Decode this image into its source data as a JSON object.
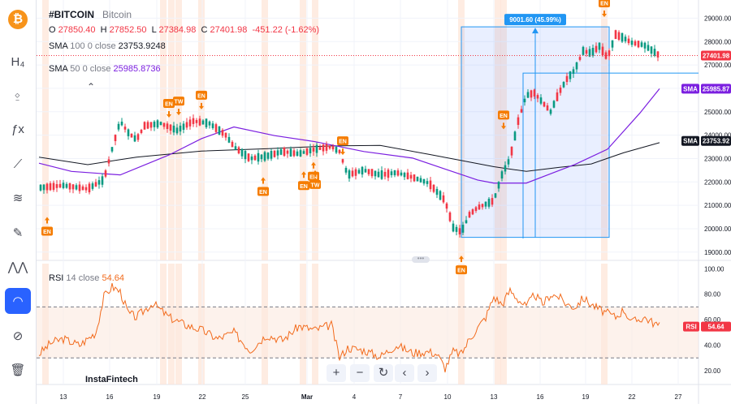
{
  "sidebar": {
    "logo_glyph": "₿",
    "tools": [
      {
        "name": "timeframe-icon",
        "glyph": "H₄",
        "top": 60
      },
      {
        "name": "candles-icon",
        "glyph": "⍚",
        "top": 100
      },
      {
        "name": "indicators-icon",
        "glyph": "ƒx",
        "top": 143
      },
      {
        "name": "trendline-icon",
        "glyph": "⟋",
        "top": 186
      },
      {
        "name": "fib-icon",
        "glyph": "≋",
        "top": 228
      },
      {
        "name": "brush-icon",
        "glyph": "✎",
        "top": 271
      },
      {
        "name": "patterns-icon",
        "glyph": "⋀⋀",
        "top": 313
      },
      {
        "name": "magnet-icon",
        "glyph": "◠",
        "top": 355,
        "active": true
      },
      {
        "name": "hide-drawings-icon",
        "glyph": "⊘",
        "top": 398
      },
      {
        "name": "trash-icon",
        "glyph": "🗑",
        "top": 440
      }
    ]
  },
  "header": {
    "symbol": "#BITCOIN",
    "name": "Bitcoin",
    "o_label": "O",
    "o_value": "27850.40",
    "h_label": "H",
    "h_value": "27852.50",
    "l_label": "L",
    "l_value": "27384.98",
    "c_label": "C",
    "c_value": "27401.98",
    "change": "-451.22 (-1.62%)"
  },
  "indicators": {
    "sma100": {
      "label": "SMA",
      "params": "100  0  close",
      "value": "23753.9248",
      "axis_label": "SMA",
      "axis_value": "23753.92",
      "color": "#131722"
    },
    "sma50": {
      "label": "SMA",
      "params": "50  0  close",
      "value": "25985.8736",
      "axis_label": "SMA",
      "axis_value": "25985.87",
      "color": "#7b1fe0"
    },
    "rsi": {
      "label": "RSI",
      "params": "14  close",
      "value": "54.64",
      "axis_label": "RSI",
      "axis_value": "54.64",
      "color": "#f26b1d"
    }
  },
  "price_label": "27401.98",
  "measure_label": "9001.60 (45.99%)",
  "marker_labels": {
    "en": "EN",
    "tw": "TW"
  },
  "watermark": "InstaFintech",
  "chart_data": {
    "type": "candlestick",
    "price_axis": {
      "ticks": [
        "29000.00",
        "28000.00",
        "27000.00",
        "26000.00",
        "25000.00",
        "24000.00",
        "23000.00",
        "22000.00",
        "21000.00",
        "20000.00",
        "19000.00"
      ],
      "ylim": [
        18750,
        29500
      ]
    },
    "rsi_axis": {
      "ticks": [
        "100.00",
        "80.00",
        "60.00",
        "40.00",
        "20.00"
      ],
      "ylim": [
        13,
        104
      ],
      "bands": [
        30,
        70
      ]
    },
    "x_axis": {
      "ticks": [
        "13",
        "16",
        "19",
        "22",
        "25",
        "Mar",
        "4",
        "7",
        "10",
        "13",
        "16",
        "19",
        "22",
        "27"
      ]
    },
    "sma100_points": [
      [
        0,
        23060
      ],
      [
        60,
        22740
      ],
      [
        120,
        23060
      ],
      [
        200,
        23320
      ],
      [
        280,
        23420
      ],
      [
        360,
        23540
      ],
      [
        420,
        23560
      ],
      [
        480,
        23180
      ],
      [
        560,
        22650
      ],
      [
        600,
        22450
      ],
      [
        640,
        22620
      ],
      [
        680,
        22770
      ],
      [
        720,
        23250
      ],
      [
        764,
        23680
      ]
    ],
    "sma50_points": [
      [
        0,
        22800
      ],
      [
        40,
        22450
      ],
      [
        100,
        22300
      ],
      [
        160,
        23150
      ],
      [
        200,
        23850
      ],
      [
        240,
        24350
      ],
      [
        290,
        23980
      ],
      [
        340,
        23720
      ],
      [
        400,
        23300
      ],
      [
        460,
        23020
      ],
      [
        500,
        22550
      ],
      [
        540,
        22080
      ],
      [
        560,
        21950
      ],
      [
        600,
        21950
      ],
      [
        630,
        22350
      ],
      [
        660,
        22750
      ],
      [
        700,
        23400
      ],
      [
        740,
        24950
      ],
      [
        764,
        25985
      ]
    ],
    "price_points": [
      [
        0,
        21750
      ],
      [
        30,
        21850
      ],
      [
        60,
        21700
      ],
      [
        80,
        22100
      ],
      [
        90,
        23400
      ],
      [
        100,
        24600
      ],
      [
        110,
        24100
      ],
      [
        120,
        23800
      ],
      [
        130,
        24400
      ],
      [
        150,
        24500
      ],
      [
        170,
        24200
      ],
      [
        190,
        24600
      ],
      [
        210,
        24500
      ],
      [
        230,
        24000
      ],
      [
        240,
        23500
      ],
      [
        260,
        23000
      ],
      [
        280,
        23100
      ],
      [
        300,
        23300
      ],
      [
        320,
        23200
      ],
      [
        340,
        23400
      ],
      [
        360,
        23500
      ],
      [
        370,
        23300
      ],
      [
        380,
        22300
      ],
      [
        400,
        22500
      ],
      [
        420,
        22300
      ],
      [
        440,
        22400
      ],
      [
        460,
        22200
      ],
      [
        480,
        21950
      ],
      [
        500,
        21200
      ],
      [
        510,
        20050
      ],
      [
        520,
        19850
      ],
      [
        530,
        20600
      ],
      [
        540,
        20900
      ],
      [
        560,
        21200
      ],
      [
        570,
        22300
      ],
      [
        580,
        23000
      ],
      [
        590,
        24600
      ],
      [
        600,
        25700
      ],
      [
        610,
        25800
      ],
      [
        620,
        25400
      ],
      [
        630,
        25000
      ],
      [
        640,
        25800
      ],
      [
        650,
        26400
      ],
      [
        660,
        26800
      ],
      [
        670,
        27600
      ],
      [
        680,
        27500
      ],
      [
        690,
        27800
      ],
      [
        700,
        27300
      ],
      [
        710,
        28300
      ],
      [
        720,
        28150
      ],
      [
        730,
        27950
      ],
      [
        745,
        27850
      ],
      [
        764,
        27402
      ]
    ],
    "rsi_points": [
      [
        0,
        33
      ],
      [
        15,
        42
      ],
      [
        30,
        45
      ],
      [
        50,
        40
      ],
      [
        70,
        50
      ],
      [
        80,
        78
      ],
      [
        90,
        86
      ],
      [
        100,
        82
      ],
      [
        110,
        65
      ],
      [
        120,
        62
      ],
      [
        140,
        73
      ],
      [
        160,
        62
      ],
      [
        180,
        56
      ],
      [
        200,
        52
      ],
      [
        220,
        45
      ],
      [
        240,
        50
      ],
      [
        260,
        36
      ],
      [
        280,
        48
      ],
      [
        300,
        44
      ],
      [
        320,
        55
      ],
      [
        340,
        52
      ],
      [
        360,
        56
      ],
      [
        370,
        30
      ],
      [
        380,
        38
      ],
      [
        400,
        36
      ],
      [
        420,
        31
      ],
      [
        440,
        40
      ],
      [
        460,
        34
      ],
      [
        480,
        35
      ],
      [
        490,
        33
      ],
      [
        500,
        22
      ],
      [
        510,
        35
      ],
      [
        520,
        33
      ],
      [
        530,
        45
      ],
      [
        550,
        62
      ],
      [
        560,
        78
      ],
      [
        570,
        72
      ],
      [
        580,
        83
      ],
      [
        590,
        76
      ],
      [
        600,
        70
      ],
      [
        610,
        80
      ],
      [
        620,
        72
      ],
      [
        630,
        80
      ],
      [
        640,
        78
      ],
      [
        650,
        72
      ],
      [
        660,
        70
      ],
      [
        670,
        77
      ],
      [
        680,
        72
      ],
      [
        690,
        68
      ],
      [
        710,
        62
      ],
      [
        720,
        68
      ],
      [
        730,
        58
      ],
      [
        745,
        62
      ],
      [
        764,
        54.64
      ]
    ],
    "measure_box": {
      "x0": 520,
      "x1": 702,
      "price_low": 19630,
      "price_high": 28630
    },
    "range_box": {
      "x0": 596,
      "x1": 815,
      "price_top": 26650
    },
    "en_markers_up": [
      [
        10,
        20500
      ],
      [
        276,
        22200
      ],
      [
        326,
        22450
      ],
      [
        338,
        22850
      ],
      [
        520,
        18850
      ]
    ],
    "en_markers_down": [
      [
        160,
        24750
      ],
      [
        200,
        25100
      ],
      [
        572,
        24250
      ],
      [
        696,
        29050
      ],
      [
        374,
        23150
      ]
    ],
    "tw_markers_up": [
      [
        340,
        22500
      ]
    ],
    "tw_markers_down": [
      [
        172,
        24850
      ]
    ],
    "vertical_bands": [
      8,
      153,
      163,
      172,
      200,
      278,
      325,
      340,
      520,
      565,
      572,
      696
    ]
  }
}
